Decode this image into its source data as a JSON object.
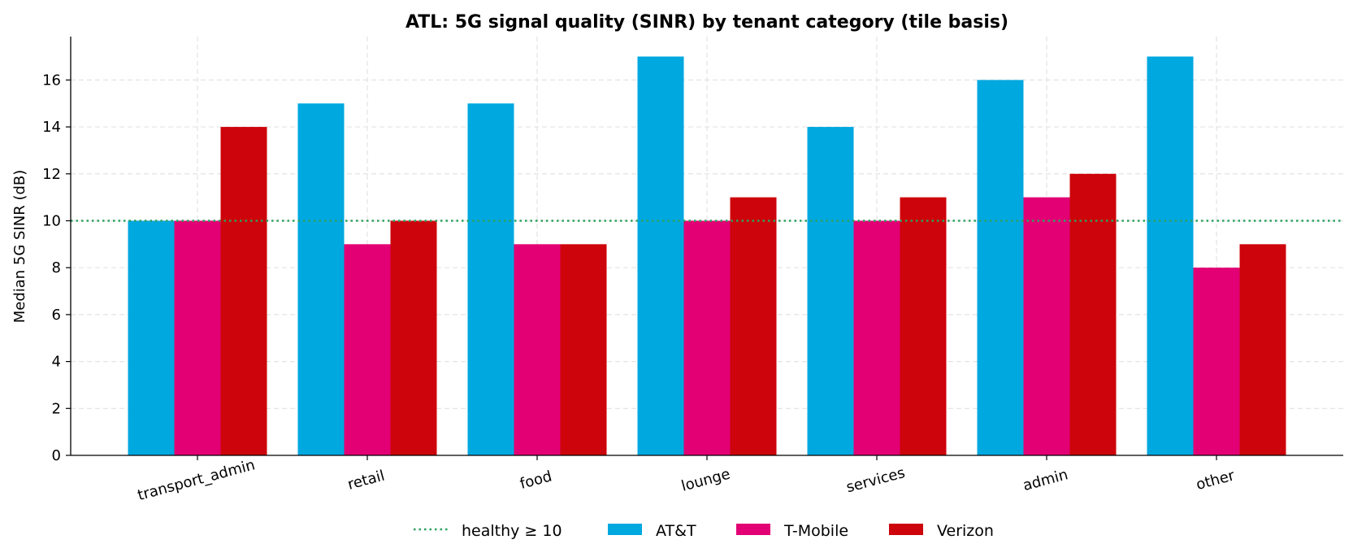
{
  "chart_data": {
    "type": "bar",
    "title": "ATL: 5G signal quality (SINR) by tenant category (tile basis)",
    "xlabel": "",
    "ylabel": "Median 5G SINR (dB)",
    "ylim": [
      0,
      17.85
    ],
    "yticks": [
      0,
      2,
      4,
      6,
      8,
      10,
      12,
      14,
      16
    ],
    "categories": [
      "transport_admin",
      "retail",
      "food",
      "lounge",
      "services",
      "admin",
      "other"
    ],
    "series": [
      {
        "name": "AT&T",
        "color": "#00a8e0",
        "values": [
          10,
          15,
          15,
          17,
          14,
          16,
          17
        ]
      },
      {
        "name": "T-Mobile",
        "color": "#e20074",
        "values": [
          10,
          9,
          9,
          10,
          10,
          11,
          8
        ]
      },
      {
        "name": "Verizon",
        "color": "#cd040b",
        "values": [
          14,
          10,
          9,
          11,
          11,
          12,
          9
        ]
      }
    ],
    "reference_line": {
      "label": "healthy ≥ 10",
      "value": 10,
      "color": "#2ca25f",
      "style": "dotted"
    },
    "grid": true,
    "legend_position": "bottom-center"
  }
}
